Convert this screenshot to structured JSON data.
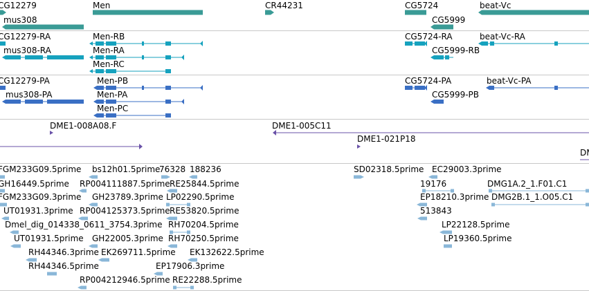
{
  "colors": {
    "gene": "#3a9b96",
    "transcript_rna": "#16a2be",
    "transcript_protein": "#3a6fc4",
    "clone": "#6a52a8",
    "est": "#8ab7d8",
    "separator": "#c8c8c8",
    "background": "#ffffff"
  },
  "tracks": {
    "genes": {
      "labels": [
        "CG12279",
        "Men",
        "CR44231",
        "CG5724",
        "beat-Vc",
        "mus308",
        "CG5999"
      ]
    },
    "transcripts_rna": {
      "labels": [
        "CG12279-RA",
        "Men-RB",
        "CG5724-RA",
        "beat-Vc-RA",
        "mus308-RA",
        "Men-RA",
        "CG5999-RB",
        "Men-RC"
      ]
    },
    "transcripts_protein": {
      "labels": [
        "CG12279-PA",
        "Men-PB",
        "CG5724-PA",
        "beat-Vc-PA",
        "mus308-PA",
        "Men-PA",
        "CG5999-PB",
        "Men-PC"
      ]
    },
    "clones": {
      "labels": [
        "DME1-008A08.F",
        "DME1-005C11",
        "DME1-021P18",
        "DM"
      ]
    },
    "ests": {
      "labels": [
        "FGM233G09.5prime",
        "bs12h01.5prime",
        "76328",
        "188236",
        "SD02318.5prime",
        "EC29003.3prime",
        "GH16449.5prime",
        "RP004111887.5prime",
        "RE25844.5prime",
        "19176",
        "DMG1A.2_1.F01.C1",
        "FGM233G09.3prime",
        "GH23789.3prime",
        "LP02290.5prime",
        "EP18210.3prime",
        "DMG2B.1_1.O05.C1",
        "UT01931.3prime",
        "RP004125373.5prime",
        "RE53820.5prime",
        "513843",
        "Dmel_dig_014338_0611_3754.3prime",
        "RH70204.5prime",
        "LP22128.5prime",
        "UT01931.5prime",
        "GH22005.3prime",
        "RH70250.5prime",
        "LP19360.5prime",
        "RH44346.3prime",
        "EK269711.5prime",
        "EK132622.5prime",
        "RH44346.5prime",
        "EP17906.3prime",
        "RP004212946.5prime",
        "RE22288.5prime"
      ]
    }
  }
}
